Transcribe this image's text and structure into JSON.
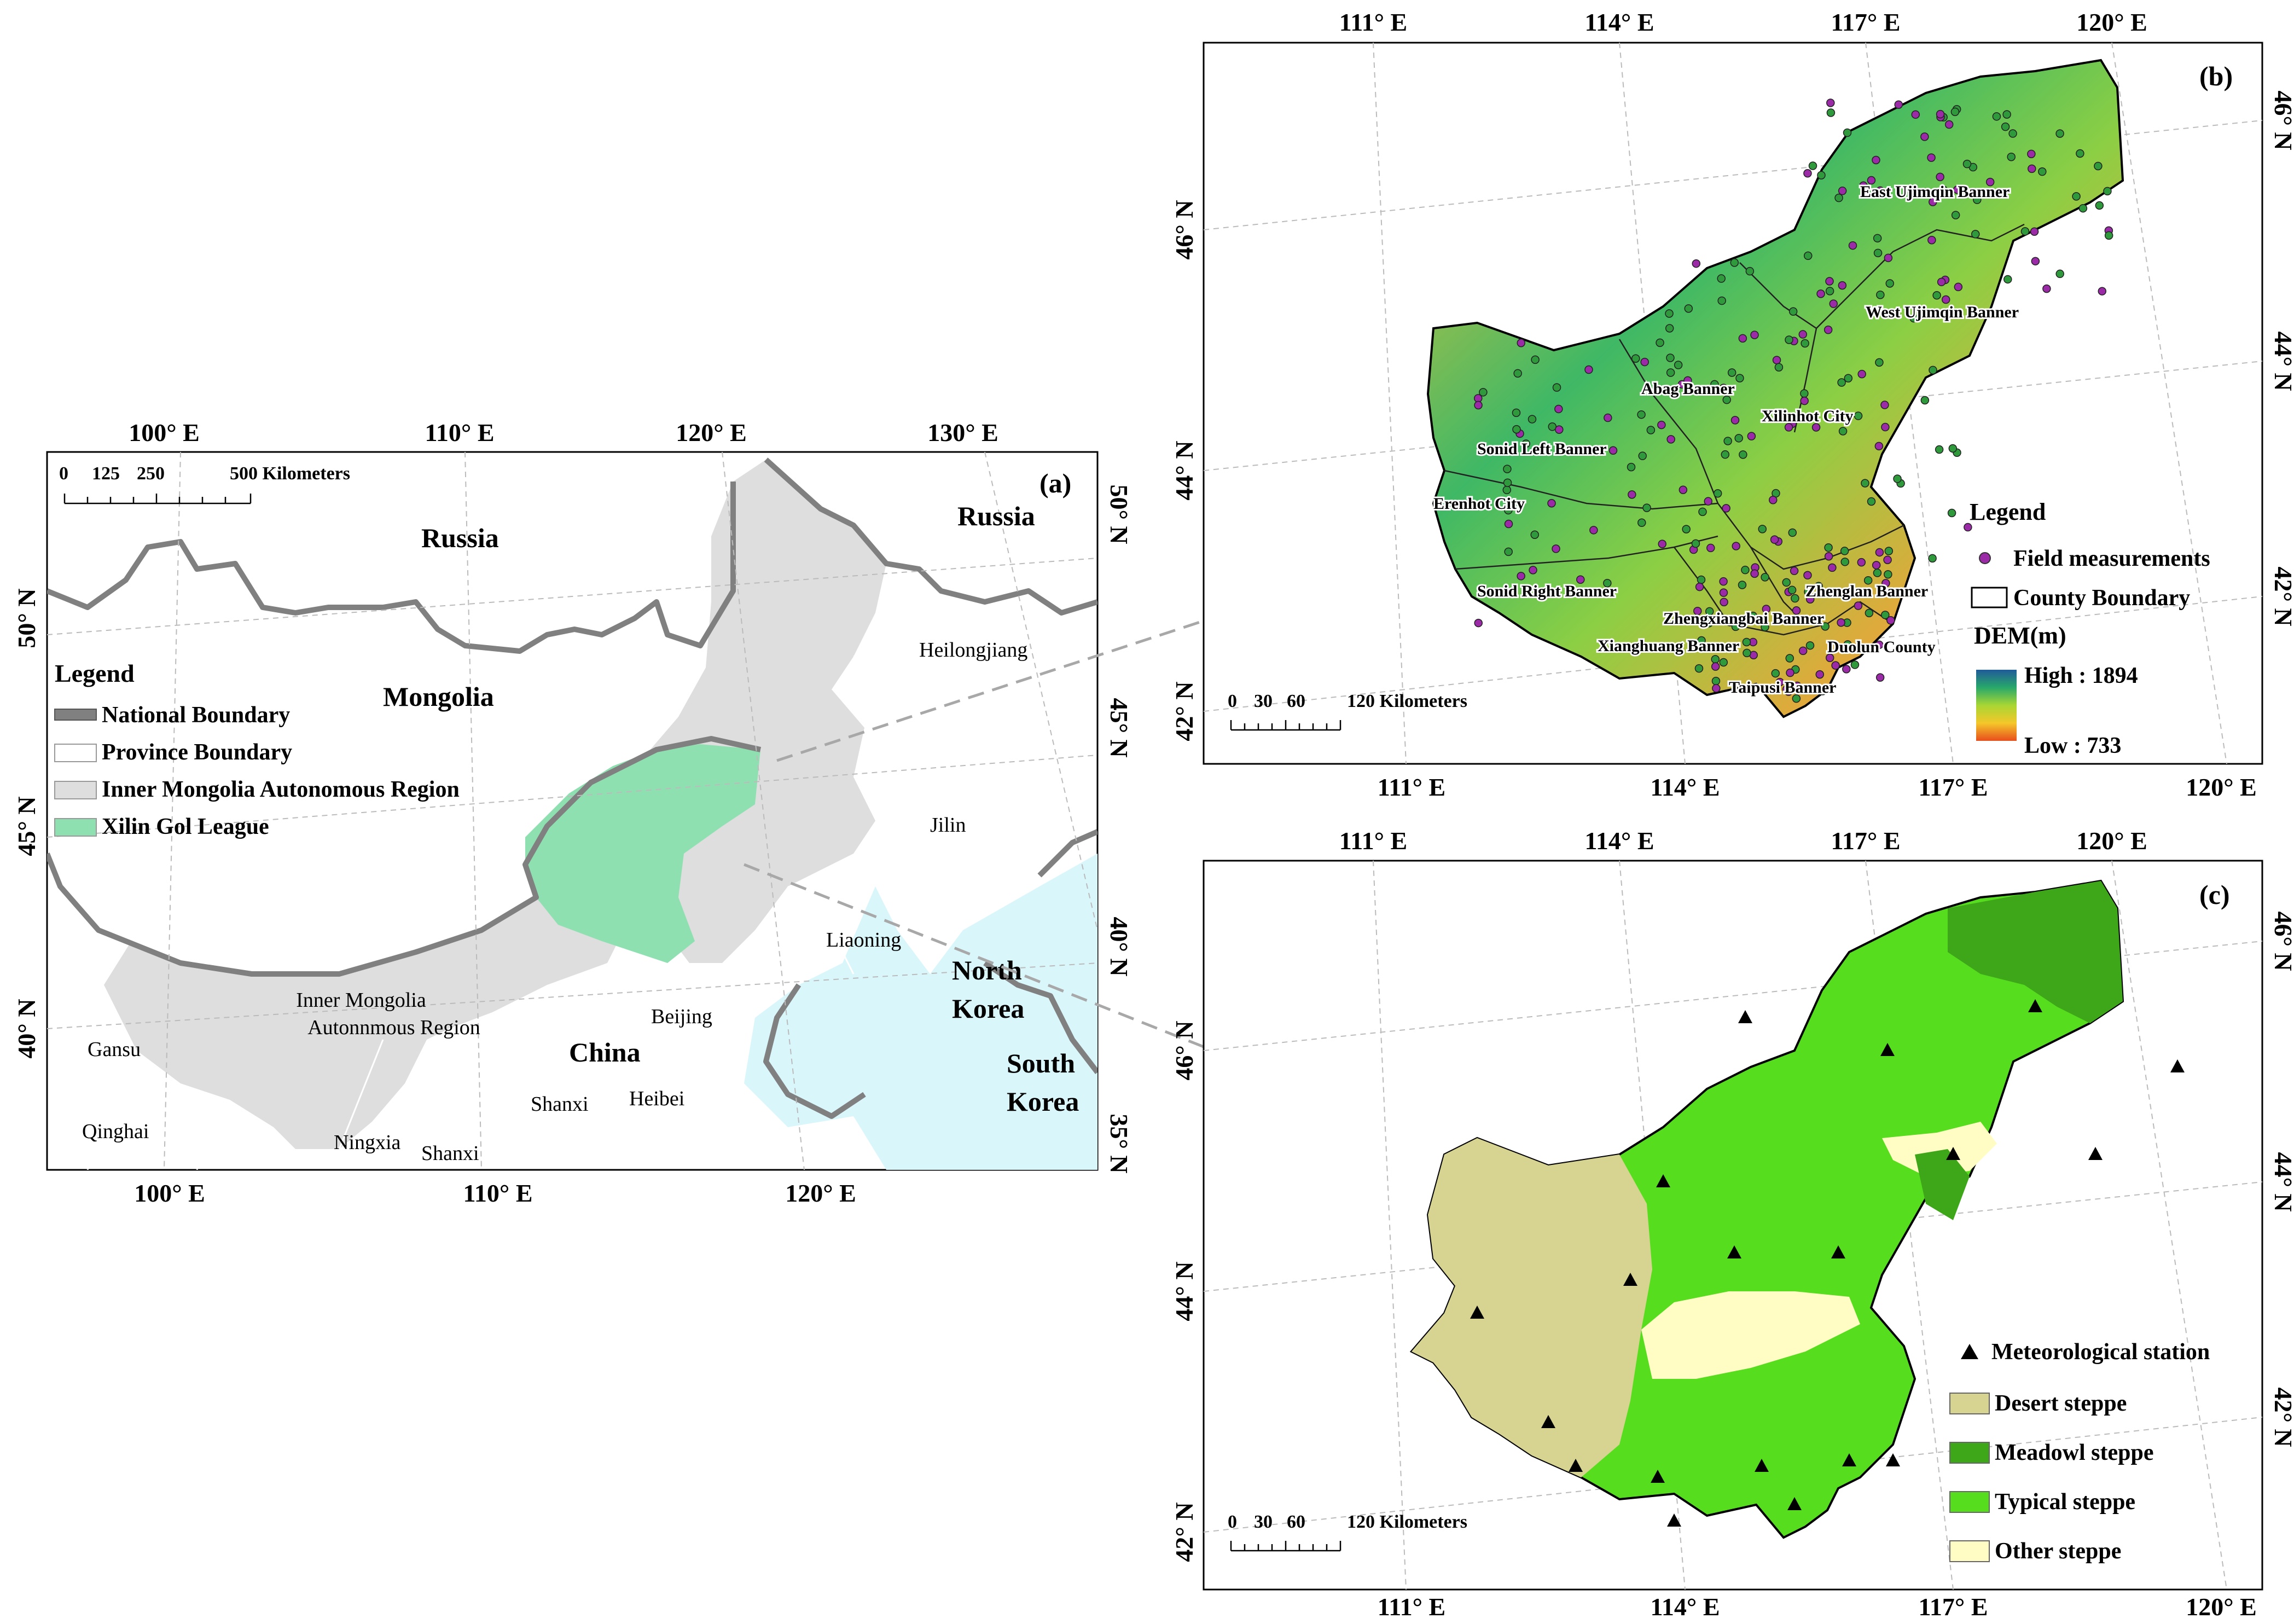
{
  "panel_a": {
    "tag": "(a)",
    "top_ticks": [
      "100° E",
      "110° E",
      "120° E",
      "130° E"
    ],
    "bottom_ticks": [
      "100° E",
      "110° E",
      "120° E"
    ],
    "left_ticks": [
      "50° N",
      "45° N",
      "40° N"
    ],
    "right_ticks": [
      "50° N",
      "45° N",
      "40° N",
      "35° N"
    ],
    "scale": {
      "labels": [
        "0",
        "125",
        "250",
        "500 Kilometers"
      ]
    },
    "countries": [
      "Russia",
      "Russia",
      "Mongolia",
      "China",
      "North",
      "Korea",
      "South",
      "Korea"
    ],
    "places": [
      "Heilongjiang",
      "Jilin",
      "Liaoning",
      "Beijing",
      "Heibei",
      "Shanxi",
      "Shanxi",
      "Ningxia",
      "Gansu",
      "Qinghai",
      "Inner Mongolia",
      "Autonnmous Region"
    ],
    "legend": {
      "title": "Legend",
      "items": [
        {
          "label": "National Boundary",
          "color": "#808080"
        },
        {
          "label": "Province Boundary",
          "color": "#ffffff"
        },
        {
          "label": "Inner Mongolia Autonomous Region",
          "color": "#dedede"
        },
        {
          "label": "Xilin Gol League",
          "color": "#8fe0b0"
        }
      ]
    }
  },
  "panel_b": {
    "tag": "(b)",
    "top_ticks": [
      "111° E",
      "114° E",
      "117° E",
      "120° E"
    ],
    "bottom_ticks": [
      "111° E",
      "114° E",
      "117° E",
      "120° E"
    ],
    "left_ticks": [
      "46° N",
      "44° N",
      "42° N"
    ],
    "right_ticks": [
      "46° N",
      "44° N",
      "42° N"
    ],
    "scale": {
      "labels": [
        "0",
        "30",
        "60",
        "120 Kilometers"
      ]
    },
    "places": [
      "East Ujimqin Banner",
      "West Ujimqin Banner",
      "Abag Banner",
      "Xilinhot City",
      "Sonid Left Banner",
      "Erenhot City",
      "Sonid Right Banner",
      "Zhenglan Banner",
      "Zhengxiangbai Banner",
      "Xianghuang Banner",
      "Duolun County",
      "Taipusi Banner"
    ],
    "legend": {
      "title": "Legend",
      "field": "Field measurements",
      "county": "County Boundary",
      "dem_title": "DEM(m)",
      "high": "High : 1894",
      "low": "Low : 733"
    }
  },
  "panel_c": {
    "tag": "(c)",
    "top_ticks": [
      "111° E",
      "114° E",
      "117° E",
      "120° E"
    ],
    "bottom_ticks": [
      "111° E",
      "114° E",
      "117° E",
      "120° E"
    ],
    "left_ticks": [
      "46° N",
      "44° N",
      "42° N"
    ],
    "right_ticks": [
      "46° N",
      "44° N",
      "42° N"
    ],
    "scale": {
      "labels": [
        "0",
        "30",
        "60",
        "120 Kilometers"
      ]
    },
    "legend": {
      "items": [
        {
          "label": "Meteorological station",
          "symbol": "triangle"
        },
        {
          "label": "Desert steppe",
          "color": "#d6d490"
        },
        {
          "label": "Meadowl steppe",
          "color": "#3ea619"
        },
        {
          "label": "Typical steppe",
          "color": "#55dd1e"
        },
        {
          "label": "Other steppe",
          "color": "#fffdc4"
        }
      ]
    }
  },
  "colors": {
    "national": "#808080",
    "inner_mongolia": "#dedede",
    "xilin": "#8fe0b0",
    "sea": "#d9f6fb",
    "dem_high": "#205a9a",
    "dem_low": "#e84e1c",
    "field_point": "#9a2aa6"
  }
}
